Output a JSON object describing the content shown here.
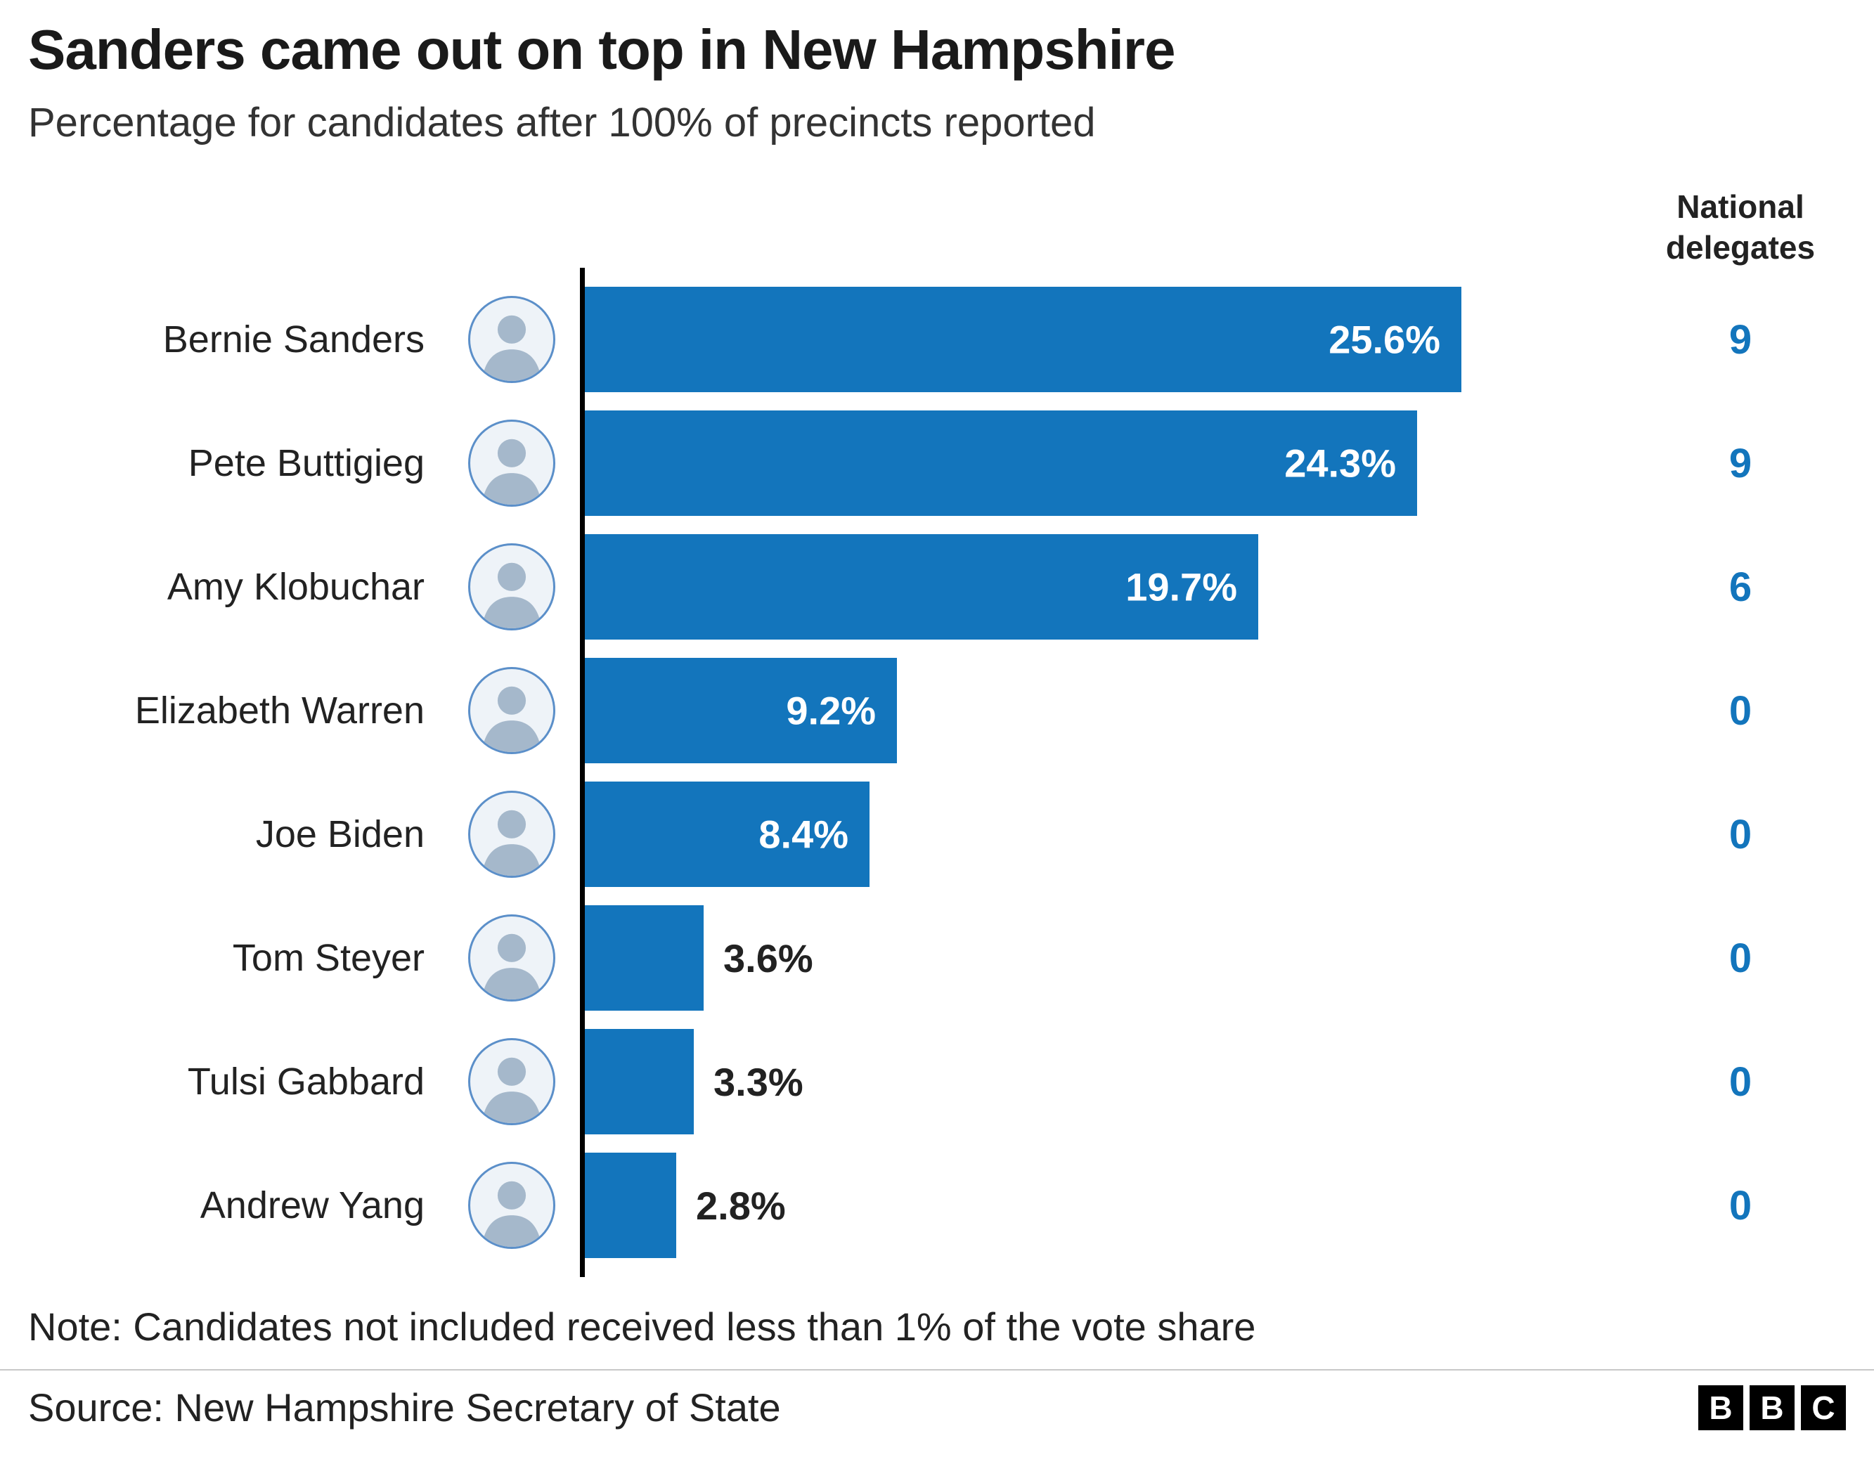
{
  "title": "Sanders came out on top in New Hampshire",
  "subtitle": "Percentage for candidates after 100% of precincts reported",
  "delegates_header": "National delegates",
  "note": "Note: Candidates not included received less than 1% of the vote share",
  "source": "Source: New Hampshire Secretary of State",
  "logo": {
    "name": "BBC",
    "letters": [
      "B",
      "B",
      "C"
    ]
  },
  "colors": {
    "bar": "#1375bc",
    "delegates_text": "#1375bc",
    "axis": "#000000",
    "title_text": "#1a1a1a",
    "label_inside": "#ffffff",
    "label_outside": "#222222"
  },
  "chart_data": {
    "type": "bar",
    "orientation": "horizontal",
    "title": "Sanders came out on top in New Hampshire",
    "subtitle": "Percentage for candidates after 100% of precincts reported",
    "categories": [
      "Bernie Sanders",
      "Pete Buttigieg",
      "Amy Klobuchar",
      "Elizabeth Warren",
      "Joe Biden",
      "Tom Steyer",
      "Tulsi Gabbard",
      "Andrew Yang"
    ],
    "values": [
      25.6,
      24.3,
      19.7,
      9.2,
      8.4,
      3.6,
      3.3,
      2.8
    ],
    "value_labels": [
      "25.6%",
      "24.3%",
      "19.7%",
      "9.2%",
      "8.4%",
      "3.6%",
      "3.3%",
      "2.8%"
    ],
    "series": [
      {
        "name": "Vote share (%)",
        "values": [
          25.6,
          24.3,
          19.7,
          9.2,
          8.4,
          3.6,
          3.3,
          2.8
        ]
      },
      {
        "name": "National delegates",
        "values": [
          9,
          9,
          6,
          0,
          0,
          0,
          0,
          0
        ]
      }
    ],
    "delegates": [
      9,
      9,
      6,
      0,
      0,
      0,
      0,
      0
    ],
    "xlim": [
      0,
      30
    ],
    "grid": false,
    "legend": false,
    "label_inside_threshold": 5
  }
}
